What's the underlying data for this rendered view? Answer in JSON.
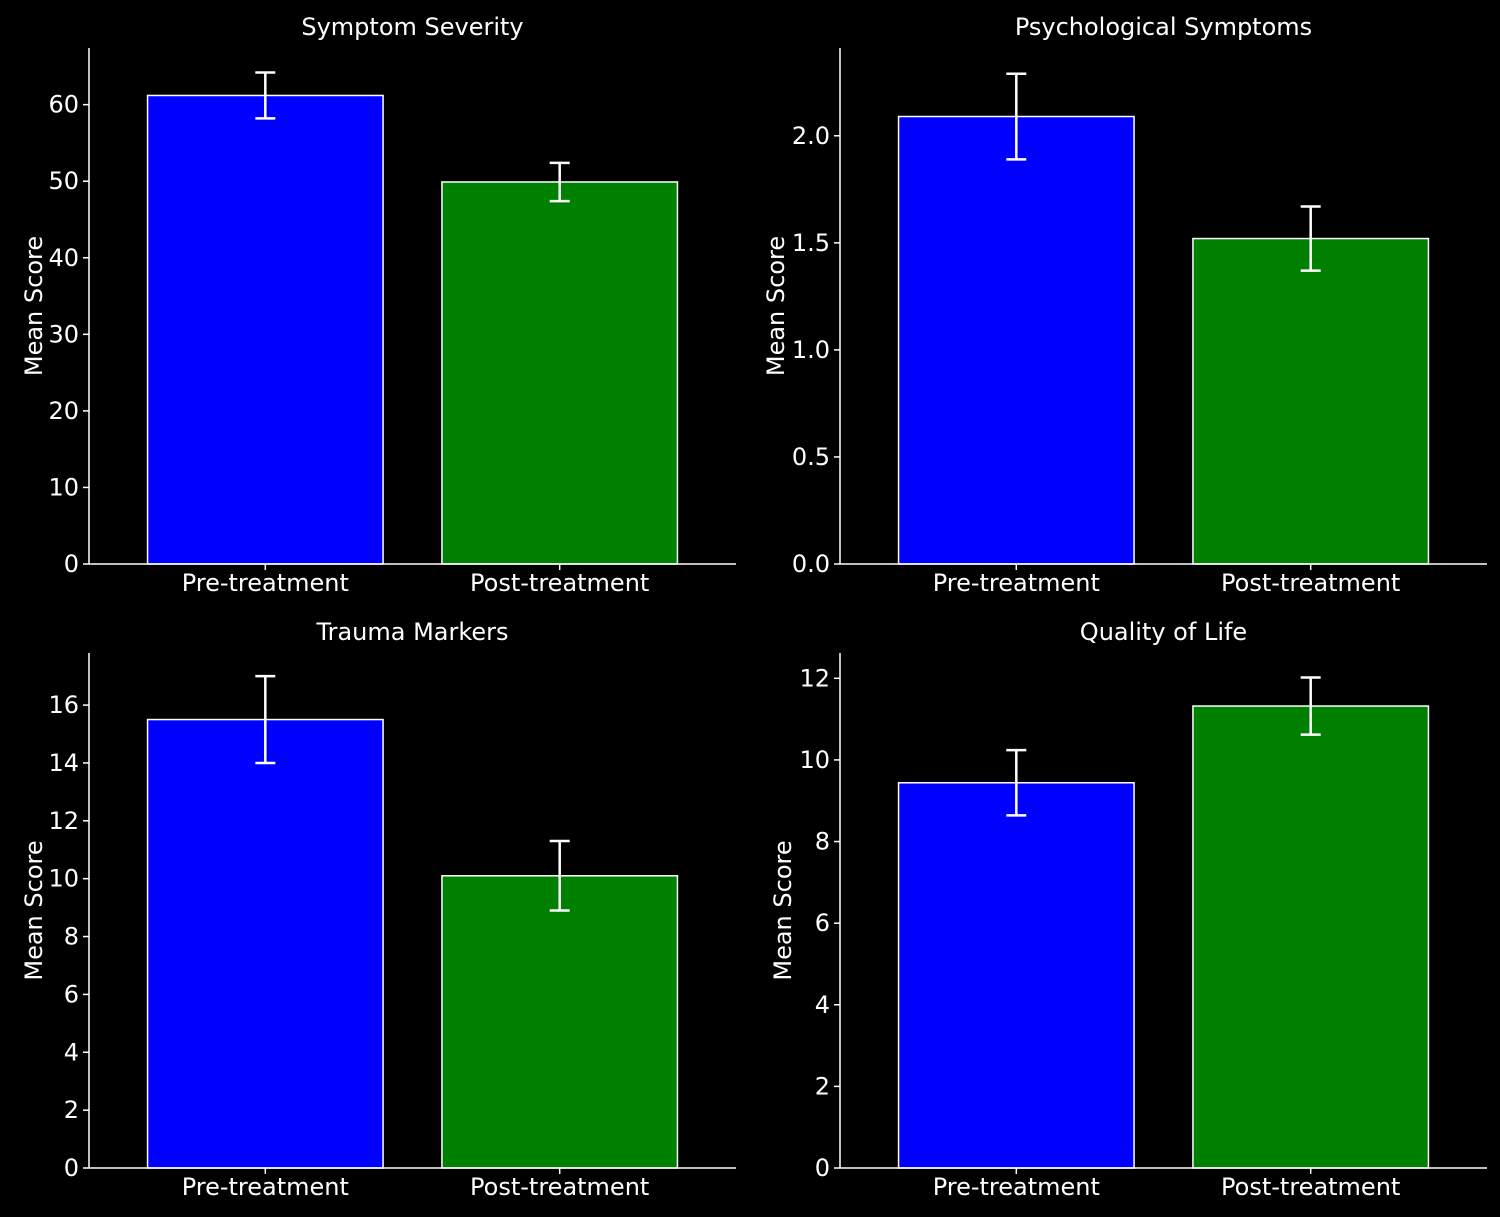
{
  "chart_data": [
    {
      "type": "bar",
      "title": "Symptom Severity",
      "xlabel": "",
      "ylabel": "Mean Score",
      "categories": [
        "Pre-treatment",
        "Post-treatment"
      ],
      "values": [
        61.2,
        49.9
      ],
      "errors": [
        3.0,
        2.5
      ],
      "ylim": [
        0,
        67.4
      ],
      "yticks": [
        0,
        10,
        20,
        30,
        40,
        50,
        60
      ],
      "ytick_labels": [
        "0",
        "10",
        "20",
        "30",
        "40",
        "50",
        "60"
      ],
      "colors": [
        "#0000ff",
        "#008000"
      ]
    },
    {
      "type": "bar",
      "title": "Psychological Symptoms",
      "xlabel": "",
      "ylabel": "Mean Score",
      "categories": [
        "Pre-treatment",
        "Post-treatment"
      ],
      "values": [
        2.09,
        1.52
      ],
      "errors": [
        0.2,
        0.15
      ],
      "ylim": [
        0,
        2.41
      ],
      "yticks": [
        0,
        0.5,
        1.0,
        1.5,
        2.0
      ],
      "ytick_labels": [
        "0.0",
        "0.5",
        "1.0",
        "1.5",
        "2.0"
      ],
      "colors": [
        "#0000ff",
        "#008000"
      ]
    },
    {
      "type": "bar",
      "title": "Trauma Markers",
      "xlabel": "",
      "ylabel": "Mean Score",
      "categories": [
        "Pre-treatment",
        "Post-treatment"
      ],
      "values": [
        15.5,
        10.1
      ],
      "errors": [
        1.5,
        1.2
      ],
      "ylim": [
        0,
        17.8
      ],
      "yticks": [
        0,
        2,
        4,
        6,
        8,
        10,
        12,
        14,
        16
      ],
      "ytick_labels": [
        "0",
        "2",
        "4",
        "6",
        "8",
        "10",
        "12",
        "14",
        "16"
      ],
      "colors": [
        "#0000ff",
        "#008000"
      ]
    },
    {
      "type": "bar",
      "title": "Quality of Life",
      "xlabel": "",
      "ylabel": "Mean Score",
      "categories": [
        "Pre-treatment",
        "Post-treatment"
      ],
      "values": [
        9.44,
        11.32
      ],
      "errors": [
        0.8,
        0.7
      ],
      "ylim": [
        0,
        12.62
      ],
      "yticks": [
        0,
        2,
        4,
        6,
        8,
        10,
        12
      ],
      "ytick_labels": [
        "0",
        "2",
        "4",
        "6",
        "8",
        "10",
        "12"
      ],
      "colors": [
        "#0000ff",
        "#008000"
      ]
    }
  ],
  "colors": {
    "background": "#000000",
    "foreground": "#ffffff"
  }
}
